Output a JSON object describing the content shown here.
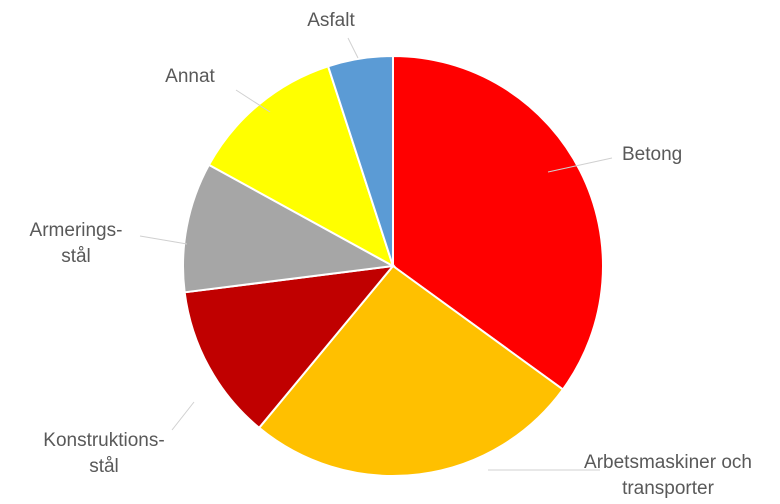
{
  "chart_data": {
    "type": "pie",
    "title": "",
    "slices": [
      {
        "label": [
          "Betong"
        ],
        "value": 35,
        "color": "#ff0000"
      },
      {
        "label": [
          "Arbetsmaskiner och",
          "transporter"
        ],
        "value": 26,
        "color": "#ffc000"
      },
      {
        "label": [
          "Konstruktions-",
          "stål"
        ],
        "value": 12,
        "color": "#c00000"
      },
      {
        "label": [
          "Armerings-",
          "stål"
        ],
        "value": 10,
        "color": "#a6a6a6"
      },
      {
        "label": [
          "Annat"
        ],
        "value": 12,
        "color": "#ffff00"
      },
      {
        "label": [
          "Asfalt"
        ],
        "value": 5,
        "color": "#5b9bd5"
      }
    ],
    "start_angle": "12 o'clock",
    "direction": "clockwise",
    "legend": "none",
    "data_labels": "outside with leader lines"
  }
}
